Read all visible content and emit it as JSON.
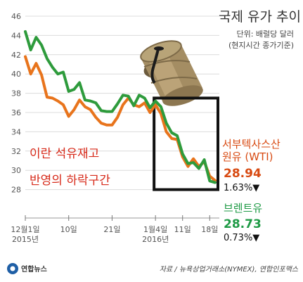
{
  "chart_data": {
    "type": "line",
    "title": "국제 유가 추이",
    "subtitle": [
      "단위: 배럴당 달러",
      "(현지시간 종가기준)"
    ],
    "ylim": [
      26,
      46
    ],
    "yticks": [
      28,
      30,
      32,
      34,
      36,
      38,
      40,
      42,
      44,
      46
    ],
    "x_tick_labels": [
      {
        "label": [
          "12월1일",
          "2015년"
        ],
        "x": 0
      },
      {
        "label": [
          "10일"
        ],
        "x": 8
      },
      {
        "label": [
          "21일"
        ],
        "x": 16
      },
      {
        "label": [
          "1월4일",
          "2016년"
        ],
        "x": 24
      },
      {
        "label": [
          "11일"
        ],
        "x": 29
      },
      {
        "label": [
          "18일"
        ],
        "x": 34
      }
    ],
    "series": [
      {
        "name": "서부텍사스산 원유 (WTI)",
        "color": "#e8741c",
        "values": [
          41.8,
          40.0,
          41.1,
          39.9,
          37.6,
          37.5,
          37.2,
          36.8,
          35.6,
          36.3,
          37.3,
          36.6,
          36.3,
          35.5,
          34.9,
          34.7,
          34.7,
          35.5,
          36.8,
          37.5,
          36.8,
          36.6,
          37.0,
          36.0,
          36.8,
          35.9,
          34.0,
          33.3,
          33.2,
          31.4,
          30.4,
          31.2,
          30.4,
          30.9,
          29.4,
          28.94
        ],
        "last_value": "28.94",
        "change": "1.63%▼"
      },
      {
        "name": "브렌트유",
        "color": "#2e9b3c",
        "values": [
          44.4,
          42.5,
          43.8,
          43.0,
          41.6,
          40.7,
          40.0,
          40.2,
          38.2,
          38.4,
          39.1,
          37.3,
          37.2,
          37.0,
          36.2,
          36.1,
          36.1,
          36.9,
          37.8,
          37.7,
          36.7,
          37.8,
          37.5,
          36.5,
          37.2,
          36.6,
          34.9,
          33.9,
          33.6,
          31.7,
          30.7,
          30.8,
          30.2,
          31.1,
          28.9,
          28.73
        ],
        "last_value": "28.73",
        "change": "0.73%▼"
      }
    ],
    "annotation": [
      "이란 석유재고",
      "반영의 하락구간"
    ],
    "highlight_range": {
      "x": [
        24,
        35
      ],
      "y": [
        28,
        37.5
      ]
    }
  },
  "source": "자료 / 뉴욕상업거래소(NYMEX), 연합인포맥스",
  "logo": "연합뉴스"
}
